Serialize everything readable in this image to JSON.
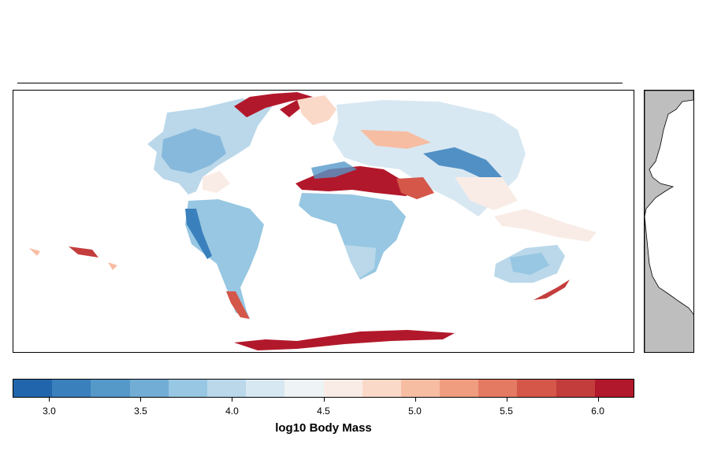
{
  "legend": {
    "title": "log10 Body Mass",
    "ticks": [
      "3.0",
      "3.5",
      "4.0",
      "4.5",
      "5.0",
      "5.5",
      "6.0"
    ],
    "tick_values": [
      3.0,
      3.5,
      4.0,
      4.5,
      5.0,
      5.5,
      6.0
    ],
    "range": [
      2.8,
      6.2
    ],
    "colors": [
      "#2166ac",
      "#3a80bd",
      "#5599c9",
      "#72add5",
      "#97c7e2",
      "#bad8ea",
      "#d8e8f2",
      "#eef3f6",
      "#f9ece6",
      "#fbd9c9",
      "#f7bda3",
      "#f09d7f",
      "#e47a62",
      "#d4574a",
      "#c43d3d",
      "#b2182b"
    ]
  },
  "map": {
    "palette": {
      "low": "#2166ac",
      "mid_low": "#72add5",
      "light_blue": "#bad8ea",
      "neutral": "#eef3f6",
      "light_red": "#fbd9c9",
      "mid_high": "#e47a62",
      "high": "#b2182b"
    }
  },
  "latitude_profile": {
    "fill": "#bebebe"
  }
}
